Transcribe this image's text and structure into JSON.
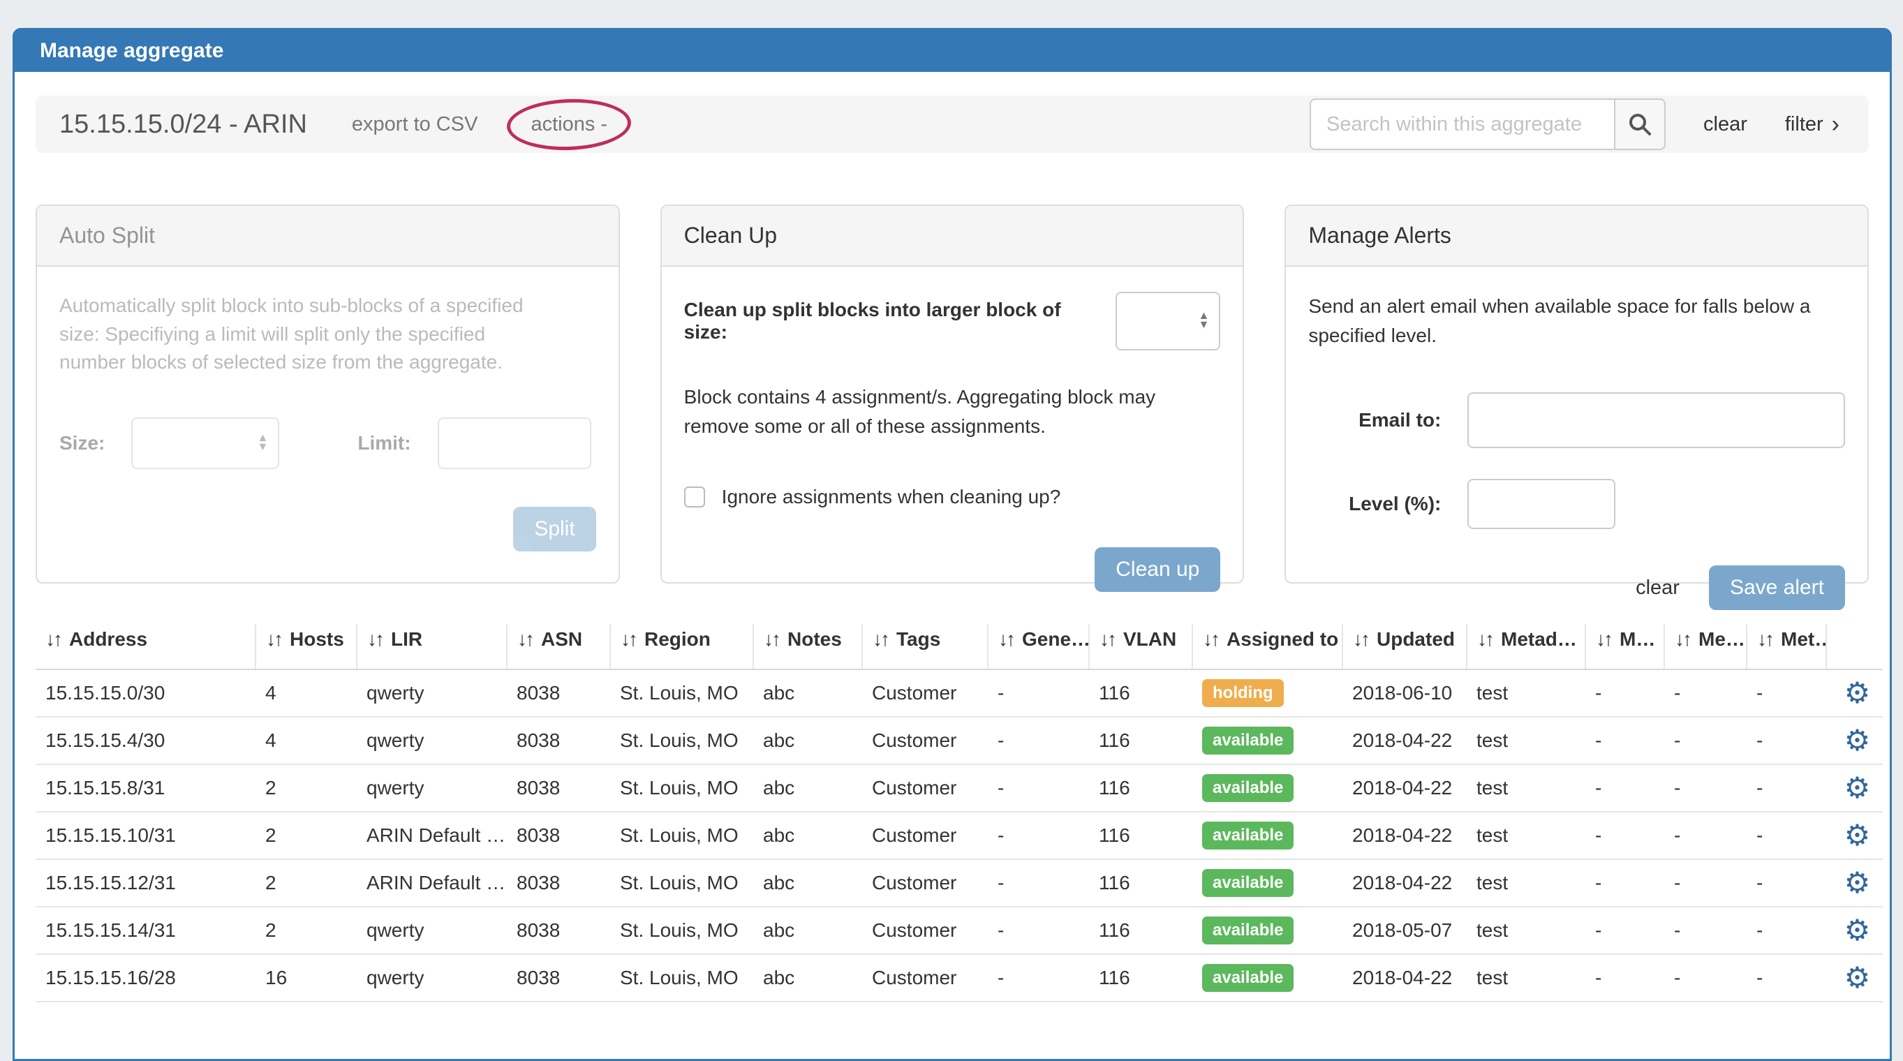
{
  "window": {
    "title": "Manage aggregate"
  },
  "toolbar": {
    "aggregate_title": "15.15.15.0/24 - ARIN",
    "export_csv_label": "export to CSV",
    "actions_label": "actions -",
    "search_placeholder": "Search within this aggregate",
    "search_value": "",
    "clear_label": "clear",
    "filter_label": "filter"
  },
  "panels": {
    "auto_split": {
      "title": "Auto Split",
      "description": "Automatically split block into sub-blocks of a specified size: Specifiying a limit will split only the specified number blocks of selected size from the aggregate.",
      "size_label": "Size:",
      "size_value": "",
      "limit_label": "Limit:",
      "limit_value": "",
      "split_button": "Split",
      "disabled": true
    },
    "clean_up": {
      "title": "Clean Up",
      "size_select_label": "Clean up split blocks into larger block of size:",
      "size_value": "",
      "note": "Block contains 4 assignment/s. Aggregating block may remove some or all of these assignments.",
      "checkbox_label": "Ignore assignments when cleaning up?",
      "checkbox_checked": false,
      "clean_up_button": "Clean up"
    },
    "manage_alerts": {
      "title": "Manage Alerts",
      "description": "Send an alert email when available space for falls below a specified level.",
      "email_label": "Email to:",
      "email_value": "",
      "level_label": "Level (%):",
      "level_value": "",
      "clear_label": "clear",
      "save_button": "Save alert"
    }
  },
  "icons": {
    "sort": "↓↑",
    "gear": "⚙",
    "select_caret_up": "▲",
    "select_caret_down": "▼",
    "filter_chevron": "›"
  },
  "colors": {
    "header_blue": "#3478b5",
    "annotation": "#be2d5f",
    "gear_blue": "#31679b"
  },
  "table": {
    "columns": [
      "Address",
      "Hosts",
      "LIR",
      "ASN",
      "Region",
      "Notes",
      "Tags",
      "Gene…",
      "VLAN",
      "Assigned to",
      "Updated",
      "Metad…",
      "M…",
      "Me…",
      "Met…"
    ],
    "status_colors": {
      "holding": "#f0ad4e",
      "available": "#5cb85c"
    },
    "rows": [
      [
        "15.15.15.0/30",
        "4",
        "qwerty",
        "8038",
        "St. Louis, MO",
        "abc",
        "Customer",
        "-",
        "116",
        "holding",
        "2018-06-10",
        "test",
        "-",
        "-",
        "-"
      ],
      [
        "15.15.15.4/30",
        "4",
        "qwerty",
        "8038",
        "St. Louis, MO",
        "abc",
        "Customer",
        "-",
        "116",
        "available",
        "2018-04-22",
        "test",
        "-",
        "-",
        "-"
      ],
      [
        "15.15.15.8/31",
        "2",
        "qwerty",
        "8038",
        "St. Louis, MO",
        "abc",
        "Customer",
        "-",
        "116",
        "available",
        "2018-04-22",
        "test",
        "-",
        "-",
        "-"
      ],
      [
        "15.15.15.10/31",
        "2",
        "ARIN Default …",
        "8038",
        "St. Louis, MO",
        "abc",
        "Customer",
        "-",
        "116",
        "available",
        "2018-04-22",
        "test",
        "-",
        "-",
        "-"
      ],
      [
        "15.15.15.12/31",
        "2",
        "ARIN Default …",
        "8038",
        "St. Louis, MO",
        "abc",
        "Customer",
        "-",
        "116",
        "available",
        "2018-04-22",
        "test",
        "-",
        "-",
        "-"
      ],
      [
        "15.15.15.14/31",
        "2",
        "qwerty",
        "8038",
        "St. Louis, MO",
        "abc",
        "Customer",
        "-",
        "116",
        "available",
        "2018-05-07",
        "test",
        "-",
        "-",
        "-"
      ],
      [
        "15.15.15.16/28",
        "16",
        "qwerty",
        "8038",
        "St. Louis, MO",
        "abc",
        "Customer",
        "-",
        "116",
        "available",
        "2018-04-22",
        "test",
        "-",
        "-",
        "-"
      ]
    ]
  }
}
